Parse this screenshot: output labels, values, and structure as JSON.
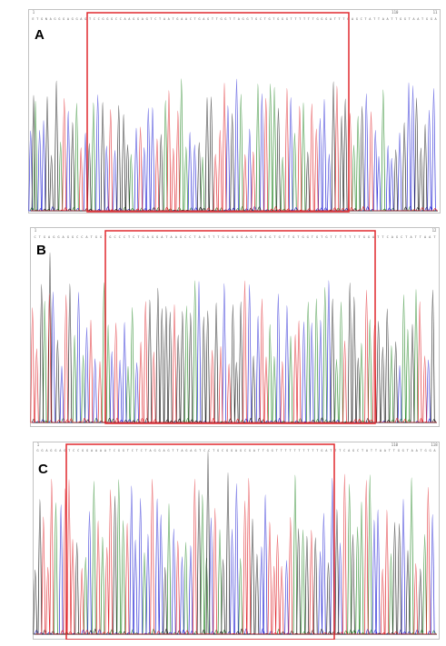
{
  "figure": {
    "panels": [
      {
        "label": "A",
        "sequence": "ETGNAGGGAGGAGTCCGGGCCAAGGAGTCTAATGAACTGAGTTGGTTAGGTGCTGTGGGTTTTTTGGGATTTCAGCTATTAATTGGTAATGGA",
        "ruler": [
          "1",
          "",
          "",
          "",
          "",
          "",
          "",
          "",
          "",
          "110",
          "11"
        ],
        "seed": 11
      },
      {
        "label": "B",
        "sequence": "CTGAGGAGGCCATGGTGCCCTCTGAGGATAAGCCTAGTTTGGAGGAGTAGGTGTTGTGGTGTGTTTTTTTGGATTCAGCTATTAAT",
        "ruler": [
          "1",
          "",
          "",
          "",
          "",
          "",
          "",
          "",
          "",
          "",
          "12"
        ],
        "seed": 29
      },
      {
        "label": "C",
        "sequence": "GGAGGAGTCCGGAAAATCGGTCTCTAGGAGTTAGAGTCCTGCGGAGCGATTGGTTTTTTTTTTGATTTCAGCTATTAATTGGTAATGGA",
        "ruler": [
          "1",
          "",
          "",
          "",
          "",
          "",
          "",
          "",
          "",
          "110",
          "118"
        ],
        "seed": 47
      }
    ],
    "colors": {
      "base_A": "#2a8a2a",
      "base_C": "#2b2bd6",
      "base_G": "#222222",
      "base_T": "#e0282e",
      "highlight_box": "#e0282e",
      "frame": "#9a9a9a"
    }
  }
}
